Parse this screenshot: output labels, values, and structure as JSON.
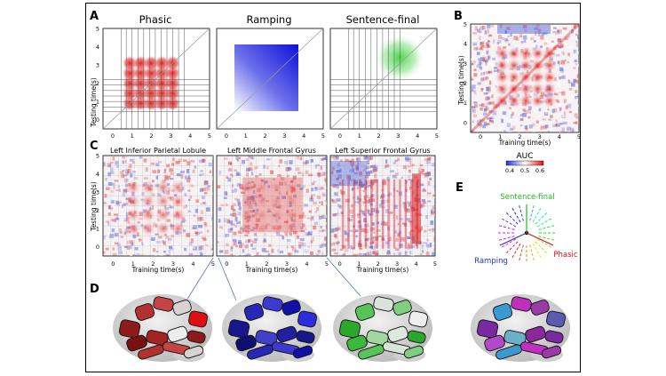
{
  "panel_letters": {
    "a": "A",
    "b": "B",
    "c": "C",
    "d": "D",
    "e": "E"
  },
  "panel_a": {
    "titles": [
      "Phasic",
      "Ramping",
      "Sentence-final"
    ],
    "ylabel": "Testing time(s)",
    "yticks": [
      "0",
      "1",
      "2",
      "3",
      "4",
      "5"
    ],
    "xticks": [
      "0",
      "1",
      "2",
      "3",
      "4",
      "5"
    ]
  },
  "panel_b": {
    "ylabel": "Testing time(s)",
    "xlabel": "Training time(s)",
    "yticks": [
      "0",
      "1",
      "2",
      "3",
      "4",
      "5"
    ],
    "xticks": [
      "0",
      "1",
      "2",
      "3",
      "4",
      "5"
    ],
    "colorbar_title": "AUC",
    "colorbar_ticks": [
      "0.4",
      "0.5",
      "0.6"
    ]
  },
  "panel_c": {
    "titles": [
      "Left Inferior Parietal Lobule",
      "Left Middle Frontal Gyrus",
      "Left Superior Frontal Gyrus"
    ],
    "ylabel": "Testing time(s)",
    "xlabel": "Training time(s)",
    "yticks": [
      "0",
      "1",
      "2",
      "3",
      "4",
      "5"
    ],
    "xticks": [
      "0",
      "1",
      "2",
      "3",
      "4",
      "5"
    ]
  },
  "panel_e": {
    "top_label": "Sentence-final",
    "left_label": "Ramping",
    "right_label": "Phasic",
    "colors": {
      "sentence_final": "#22bb22",
      "ramping": "#2233cc",
      "phasic": "#dd1111"
    }
  },
  "colors": {
    "red": "#dd1111",
    "blue": "#1f2de0",
    "green": "#39d039",
    "diverging_low": "#2233cc",
    "diverging_high": "#dd1111"
  }
}
